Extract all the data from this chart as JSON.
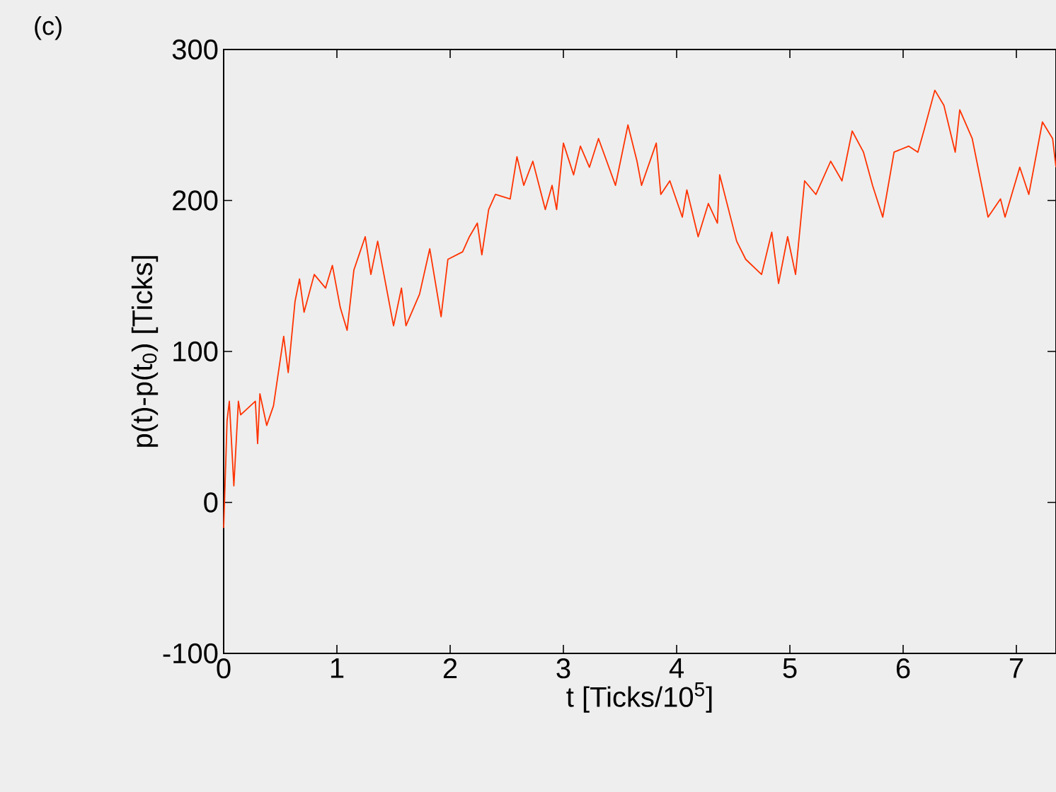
{
  "chart_data": {
    "type": "line",
    "xlabel": "t [Ticks/10$^{5}$]",
    "ylabel": "p(t)-p(t$_{0}$) [Ticks]",
    "annotations": [
      "(c)"
    ],
    "xlim": [
      0,
      7.35
    ],
    "ylim": [
      -100,
      300
    ],
    "xticks": [
      0,
      1,
      2,
      3,
      4,
      5,
      6,
      7
    ],
    "yticks": [
      -100,
      0,
      100,
      200,
      300
    ],
    "grid": false,
    "marker": "none",
    "line_style": "solid",
    "series": [
      {
        "color": "#ff3300",
        "x": [
          0.0,
          0.03,
          0.05,
          0.09,
          0.13,
          0.15,
          0.28,
          0.3,
          0.32,
          0.38,
          0.44,
          0.53,
          0.57,
          0.63,
          0.67,
          0.71,
          0.8,
          0.9,
          0.96,
          1.03,
          1.09,
          1.15,
          1.25,
          1.3,
          1.36,
          1.4,
          1.5,
          1.57,
          1.61,
          1.73,
          1.82,
          1.92,
          1.98,
          2.11,
          2.17,
          2.24,
          2.28,
          2.34,
          2.4,
          2.53,
          2.59,
          2.65,
          2.73,
          2.84,
          2.9,
          2.94,
          3.0,
          3.09,
          3.15,
          3.23,
          3.31,
          3.46,
          3.57,
          3.65,
          3.69,
          3.82,
          3.86,
          3.94,
          4.05,
          4.09,
          4.19,
          4.28,
          4.36,
          4.38,
          4.53,
          4.61,
          4.75,
          4.84,
          4.9,
          4.98,
          5.05,
          5.13,
          5.23,
          5.36,
          5.46,
          5.55,
          5.65,
          5.73,
          5.82,
          5.92,
          6.05,
          6.13,
          6.19,
          6.28,
          6.36,
          6.46,
          6.5,
          6.61,
          6.75,
          6.86,
          6.9,
          7.03,
          7.11,
          7.23,
          7.32,
          7.35
        ],
        "values": [
          -17,
          54,
          67,
          11,
          67,
          58,
          67,
          39,
          72,
          51,
          64,
          110,
          86,
          133,
          148,
          126,
          151,
          142,
          157,
          129,
          114,
          154,
          176,
          151,
          173,
          157,
          117,
          142,
          117,
          138,
          168,
          123,
          161,
          166,
          176,
          185,
          164,
          194,
          204,
          201,
          229,
          210,
          226,
          194,
          210,
          194,
          238,
          217,
          236,
          222,
          241,
          210,
          250,
          226,
          210,
          238,
          204,
          213,
          189,
          207,
          176,
          198,
          185,
          217,
          173,
          161,
          151,
          179,
          145,
          176,
          151,
          213,
          204,
          226,
          213,
          246,
          232,
          210,
          189,
          232,
          236,
          232,
          248,
          273,
          263,
          232,
          260,
          241,
          189,
          201,
          189,
          222,
          204,
          252,
          241,
          222
        ]
      }
    ]
  }
}
